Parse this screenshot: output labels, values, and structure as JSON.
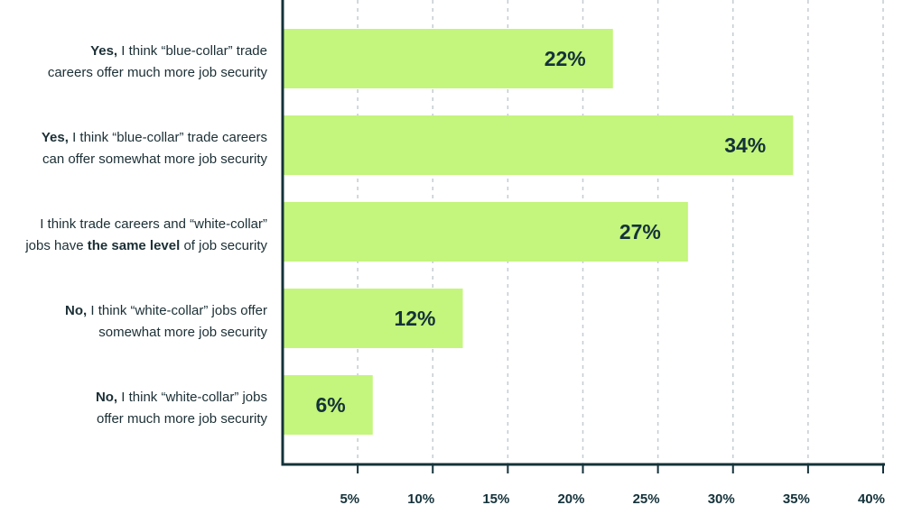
{
  "chart_data": {
    "type": "bar",
    "orientation": "horizontal",
    "title": "",
    "xlabel": "",
    "ylabel": "",
    "xlim": [
      0,
      40
    ],
    "x_ticks": [
      5,
      10,
      15,
      20,
      25,
      30,
      35,
      40
    ],
    "x_tick_labels": [
      "5%",
      "10%",
      "15%",
      "20%",
      "25%",
      "30%",
      "35%",
      "40%"
    ],
    "grid": "vertical dotted",
    "bar_color": "#c4f57c",
    "text_color": "#14323a",
    "categories": [
      [
        {
          "t": "Yes,",
          "b": true
        },
        {
          "t": " I think “blue-collar” trade",
          "b": false
        },
        {
          "br": true
        },
        {
          "t": "careers offer much more job security",
          "b": false
        }
      ],
      [
        {
          "t": "Yes,",
          "b": true
        },
        {
          "t": " I think “blue-collar” trade careers",
          "b": false
        },
        {
          "br": true
        },
        {
          "t": "can offer somewhat more job security",
          "b": false
        }
      ],
      [
        {
          "t": "I think trade careers and “white-collar”",
          "b": false
        },
        {
          "br": true
        },
        {
          "t": "jobs have ",
          "b": false
        },
        {
          "t": "the same level",
          "b": true
        },
        {
          "t": " of job security",
          "b": false
        }
      ],
      [
        {
          "t": "No,",
          "b": true
        },
        {
          "t": " I think “white-collar” jobs offer",
          "b": false
        },
        {
          "br": true
        },
        {
          "t": "somewhat more job security",
          "b": false
        }
      ],
      [
        {
          "t": "No,",
          "b": true
        },
        {
          "t": " I think “white-collar” jobs",
          "b": false
        },
        {
          "br": true
        },
        {
          "t": "offer much more job security",
          "b": false
        }
      ]
    ],
    "values": [
      22,
      34,
      27,
      12,
      6
    ],
    "value_labels": [
      "22%",
      "34%",
      "27%",
      "12%",
      "6%"
    ]
  }
}
